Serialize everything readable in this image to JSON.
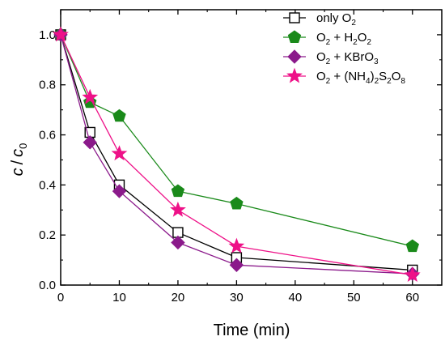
{
  "chart_data": {
    "type": "line",
    "title": "",
    "xlabel": "Time (min)",
    "ylabel": {
      "c": "c",
      "slash": "/",
      "c0_main": "c",
      "c0_sub": "0"
    },
    "xlim": [
      0,
      65
    ],
    "ylim": [
      0,
      1.1
    ],
    "xticks": [
      0,
      10,
      20,
      30,
      40,
      50,
      60
    ],
    "xtick_labels": [
      "0",
      "10",
      "20",
      "30",
      "40",
      "50",
      "60"
    ],
    "yticks": [
      0.0,
      0.2,
      0.4,
      0.6,
      0.8,
      1.0
    ],
    "ytick_labels": [
      "0.0",
      "0.2",
      "0.4",
      "0.6",
      "0.8",
      "1.0"
    ],
    "grid": false,
    "legend_position": "top-right",
    "x": [
      0,
      5,
      10,
      20,
      30,
      60
    ],
    "series": [
      {
        "name": "only O2",
        "label_parts": [
          [
            "only O",
            ""
          ],
          [
            "2",
            "sub"
          ]
        ],
        "values": [
          1.0,
          0.61,
          0.4,
          0.21,
          0.11,
          0.06
        ],
        "color": "#000000",
        "marker": "square-open"
      },
      {
        "name": "O2 + H2O2",
        "label_parts": [
          [
            "O",
            ""
          ],
          [
            "2",
            "sub"
          ],
          [
            " + H",
            ""
          ],
          [
            "2",
            "sub"
          ],
          [
            "O",
            ""
          ],
          [
            "2",
            "sub"
          ]
        ],
        "values": [
          1.0,
          0.73,
          0.675,
          0.375,
          0.325,
          0.155
        ],
        "color": "#1a8a1a",
        "marker": "pentagon"
      },
      {
        "name": "O2 + KBrO3",
        "label_parts": [
          [
            "O",
            ""
          ],
          [
            "2",
            "sub"
          ],
          [
            " + KBrO",
            ""
          ],
          [
            "3",
            "sub"
          ]
        ],
        "values": [
          1.0,
          0.57,
          0.375,
          0.17,
          0.08,
          0.045
        ],
        "color": "#8b1a8b",
        "marker": "diamond"
      },
      {
        "name": "O2 + (NH4)2S2O8",
        "label_parts": [
          [
            "O",
            ""
          ],
          [
            "2",
            "sub"
          ],
          [
            " + (NH",
            ""
          ],
          [
            "4",
            "sub"
          ],
          [
            ")",
            ""
          ],
          [
            "2",
            "sub"
          ],
          [
            "S",
            ""
          ],
          [
            "2",
            "sub"
          ],
          [
            "O",
            ""
          ],
          [
            "8",
            "sub"
          ]
        ],
        "values": [
          1.0,
          0.75,
          0.525,
          0.3,
          0.155,
          0.04
        ],
        "color": "#ee1188",
        "marker": "star"
      }
    ]
  }
}
